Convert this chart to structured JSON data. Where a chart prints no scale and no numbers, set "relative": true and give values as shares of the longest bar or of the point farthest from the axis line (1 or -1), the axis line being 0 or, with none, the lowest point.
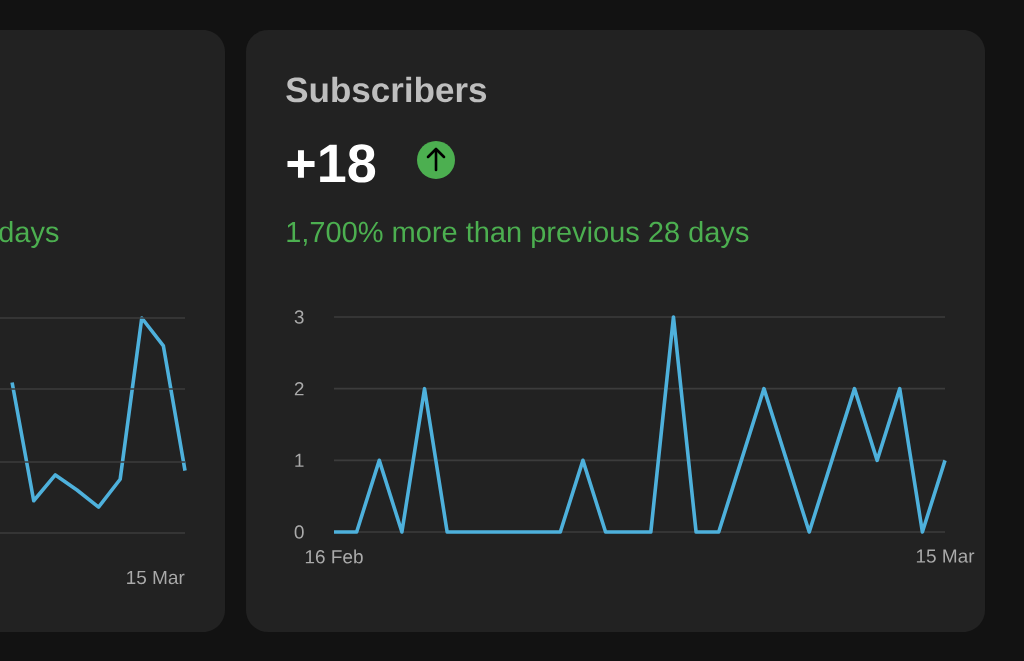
{
  "chart_data": [
    {
      "type": "line",
      "relative": true,
      "marker": "none",
      "color": "#4eb1dc",
      "annotations": [
        "days",
        "15 Mar"
      ],
      "ref_lines": [
        {
          "axis": "y",
          "value": 0.33,
          "color": "#3c3c3c"
        },
        {
          "axis": "y",
          "value": 0.67,
          "color": "#3c3c3c"
        },
        {
          "axis": "y",
          "value": 1,
          "color": "#3c3c3c"
        }
      ],
      "categories": [
        null,
        null,
        null,
        null,
        null,
        null,
        null,
        null,
        null
      ],
      "values": [
        0.7,
        0.15,
        0.27,
        0.2,
        0.12,
        0.25,
        1,
        0.87,
        0.29
      ]
    },
    {
      "type": "line",
      "title": "Subscribers",
      "subtitle": "+18",
      "annotations": [
        "1,700% more than previous 28 days"
      ],
      "grid": "y",
      "marker": "none",
      "color": "#4eb1dc",
      "categories": [
        "16 Feb",
        null,
        null,
        null,
        null,
        null,
        null,
        null,
        null,
        null,
        null,
        null,
        null,
        null,
        null,
        null,
        null,
        null,
        null,
        null,
        null,
        null,
        null,
        null,
        null,
        null,
        null,
        "15 Mar"
      ],
      "values": [
        0,
        0,
        1,
        0,
        2,
        0,
        0,
        0,
        0,
        0,
        0,
        1,
        0,
        0,
        0,
        3,
        0,
        0,
        1,
        2,
        1,
        0,
        1,
        2,
        1,
        2,
        0,
        1
      ],
      "ylim": [
        0,
        3
      ],
      "yticks": [
        0,
        1,
        2,
        3
      ]
    }
  ]
}
